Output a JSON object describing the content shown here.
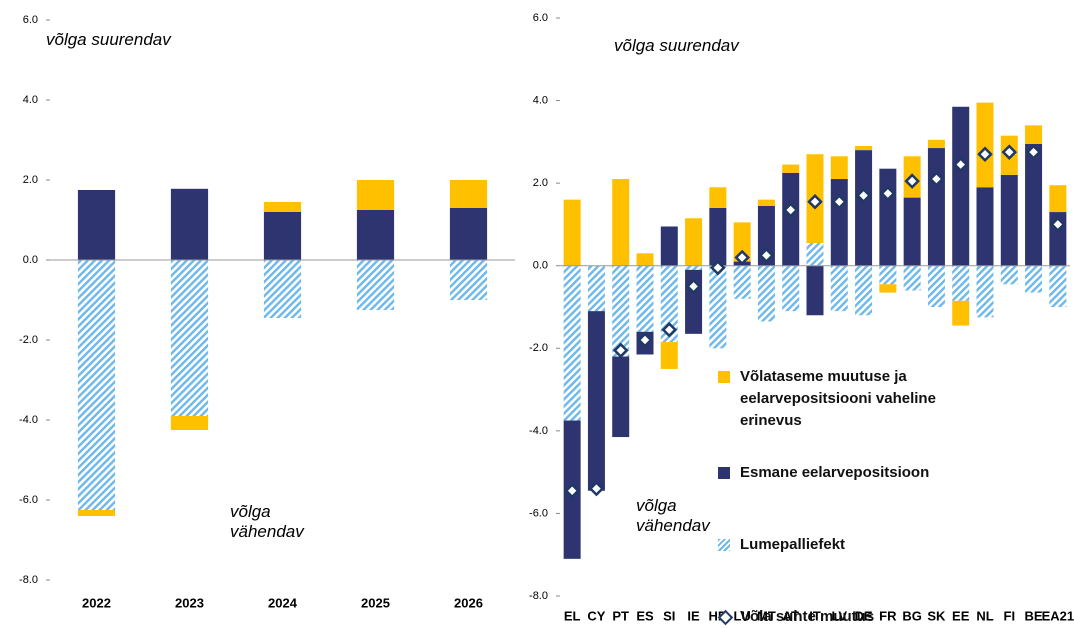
{
  "chart_data": [
    {
      "type": "bar",
      "categories": [
        "2022",
        "2023",
        "2024",
        "2025",
        "2026"
      ],
      "series": [
        {
          "name": "Võlataseme muutuse ja eelarvepositsiooni vaheline erinevus",
          "color": "#ffc000",
          "values": [
            -0.15,
            -0.35,
            0.25,
            0.75,
            0.7
          ]
        },
        {
          "name": "Esmane eelarvepositsioon",
          "color": "#2e3470",
          "values": [
            1.75,
            1.78,
            1.2,
            1.25,
            1.3
          ]
        },
        {
          "name": "Lumepalliefekt",
          "color": "#6cb8ec",
          "hatch": true,
          "values": [
            -6.25,
            -3.9,
            -1.45,
            -1.25,
            -1.0
          ]
        }
      ],
      "ylim": [
        -8,
        6
      ],
      "yticks": [
        {
          "value": -8,
          "label": "-8.0"
        },
        {
          "value": -6,
          "label": "-6.0"
        },
        {
          "value": -4,
          "label": "-4.0"
        },
        {
          "value": -2,
          "label": "-2.0"
        },
        {
          "value": 0,
          "label": "0.0"
        },
        {
          "value": 2,
          "label": "2.0"
        },
        {
          "value": 4,
          "label": "4.0"
        },
        {
          "value": 6,
          "label": "6.0"
        }
      ],
      "annotations": [
        "võlga suurendav",
        "võlga vähendav"
      ]
    },
    {
      "type": "bar",
      "categories": [
        "EL",
        "CY",
        "PT",
        "ES",
        "SI",
        "IE",
        "HR",
        "LU",
        "MT",
        "AT",
        "IT",
        "LV",
        "DE",
        "FR",
        "BG",
        "SK",
        "EE",
        "NL",
        "FI",
        "BE",
        "EA21"
      ],
      "series": [
        {
          "name": "Võlataseme muutuse ja eelarvepositsiooni vaheline erinevus",
          "color": "#ffc000",
          "values": [
            1.6,
            0,
            2.1,
            0.3,
            -0.65,
            1.15,
            0.5,
            0.95,
            0.15,
            0.2,
            2.15,
            0.55,
            0.1,
            -0.2,
            1.0,
            0.2,
            -0.6,
            2.05,
            0.95,
            0.45,
            0.65
          ]
        },
        {
          "name": "Esmane eelarvepositsioon",
          "color": "#2e3470",
          "values": [
            -3.35,
            -4.35,
            -1.95,
            -0.55,
            0.95,
            -1.55,
            1.4,
            0.1,
            1.45,
            2.25,
            -1.2,
            2.1,
            2.8,
            2.35,
            1.65,
            2.85,
            3.85,
            1.9,
            2.2,
            2.95,
            1.3
          ]
        },
        {
          "name": "Lumepalliefekt",
          "color": "#6cb8ec",
          "hatch": true,
          "values": [
            -3.75,
            -1.1,
            -2.2,
            -1.6,
            -1.85,
            -0.1,
            -2.0,
            -0.8,
            -1.35,
            -1.1,
            0.55,
            -1.1,
            -1.2,
            -0.45,
            -0.6,
            -1.0,
            -0.85,
            -1.25,
            -0.45,
            -0.65,
            -1.0
          ]
        },
        {
          "name": "Võla suhte muutus",
          "color": "#1f3864",
          "marker": "diamond",
          "values": [
            -5.45,
            -5.4,
            -2.05,
            -1.8,
            -1.55,
            -0.5,
            -0.05,
            0.2,
            0.25,
            1.35,
            1.55,
            1.55,
            1.7,
            1.75,
            2.05,
            2.1,
            2.45,
            2.7,
            2.75,
            2.75,
            1.0
          ]
        }
      ],
      "ylim": [
        -8,
        6
      ],
      "yticks": [
        {
          "value": -8,
          "label": "-8.0"
        },
        {
          "value": -6,
          "label": "-6.0"
        },
        {
          "value": -4,
          "label": "-4.0"
        },
        {
          "value": -2,
          "label": "-2.0"
        },
        {
          "value": 0,
          "label": "0.0"
        },
        {
          "value": 2,
          "label": "2.0"
        },
        {
          "value": 4,
          "label": "4.0"
        },
        {
          "value": 6,
          "label": "6.0"
        }
      ],
      "annotations": [
        "võlga suurendav",
        "võlga vähendav"
      ]
    }
  ]
}
